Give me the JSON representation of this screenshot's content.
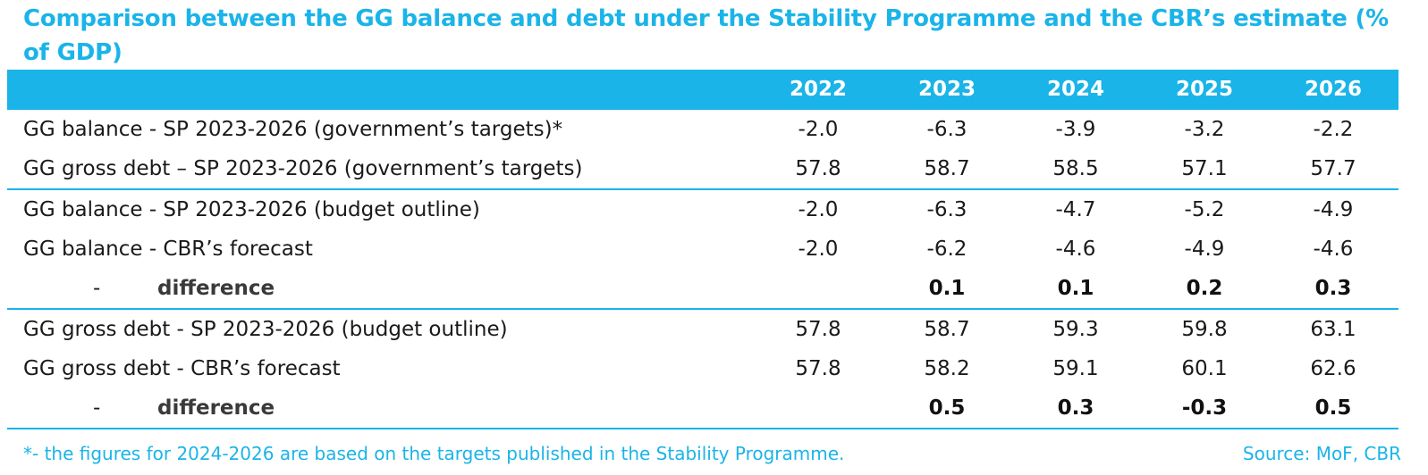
{
  "title": "Comparison between the GG balance and debt under the Stability Programme and the CBR’s estimate (% of GDP)",
  "columns": [
    "2022",
    "2023",
    "2024",
    "2025",
    "2026"
  ],
  "rows": [
    {
      "label": "GG balance - SP 2023-2026 (government’s targets)*",
      "values": [
        "-2.0",
        "-6.3",
        "-3.9",
        "-3.2",
        "-2.2"
      ]
    },
    {
      "label": "GG gross debt – SP 2023-2026 (government’s targets)",
      "values": [
        "57.8",
        "58.7",
        "58.5",
        "57.1",
        "57.7"
      ]
    },
    {
      "label": "GG balance - SP 2023-2026 (budget outline)",
      "values": [
        "-2.0",
        "-6.3",
        "-4.7",
        "-5.2",
        "-4.9"
      ]
    },
    {
      "label": "GG balance - CBR’s forecast",
      "values": [
        "-2.0",
        "-6.2",
        "-4.6",
        "-4.9",
        "-4.6"
      ]
    },
    {
      "dash": "-",
      "label": "difference",
      "values": [
        "",
        "0.1",
        "0.1",
        "0.2",
        "0.3"
      ]
    },
    {
      "label": "GG gross debt - SP 2023-2026 (budget outline)",
      "values": [
        "57.8",
        "58.7",
        "59.3",
        "59.8",
        "63.1"
      ]
    },
    {
      "label": "GG gross debt - CBR’s forecast",
      "values": [
        "57.8",
        "58.2",
        "59.1",
        "60.1",
        "62.6"
      ]
    },
    {
      "dash": "-",
      "label": "difference",
      "values": [
        "",
        "0.5",
        "0.3",
        "-0.3",
        "0.5"
      ]
    }
  ],
  "footnote": "*- the figures for 2024-2026 are based on the targets published in the Stability Programme.",
  "source": "Source: MoF, CBR",
  "colors": {
    "accent": "#1ab4e8"
  }
}
